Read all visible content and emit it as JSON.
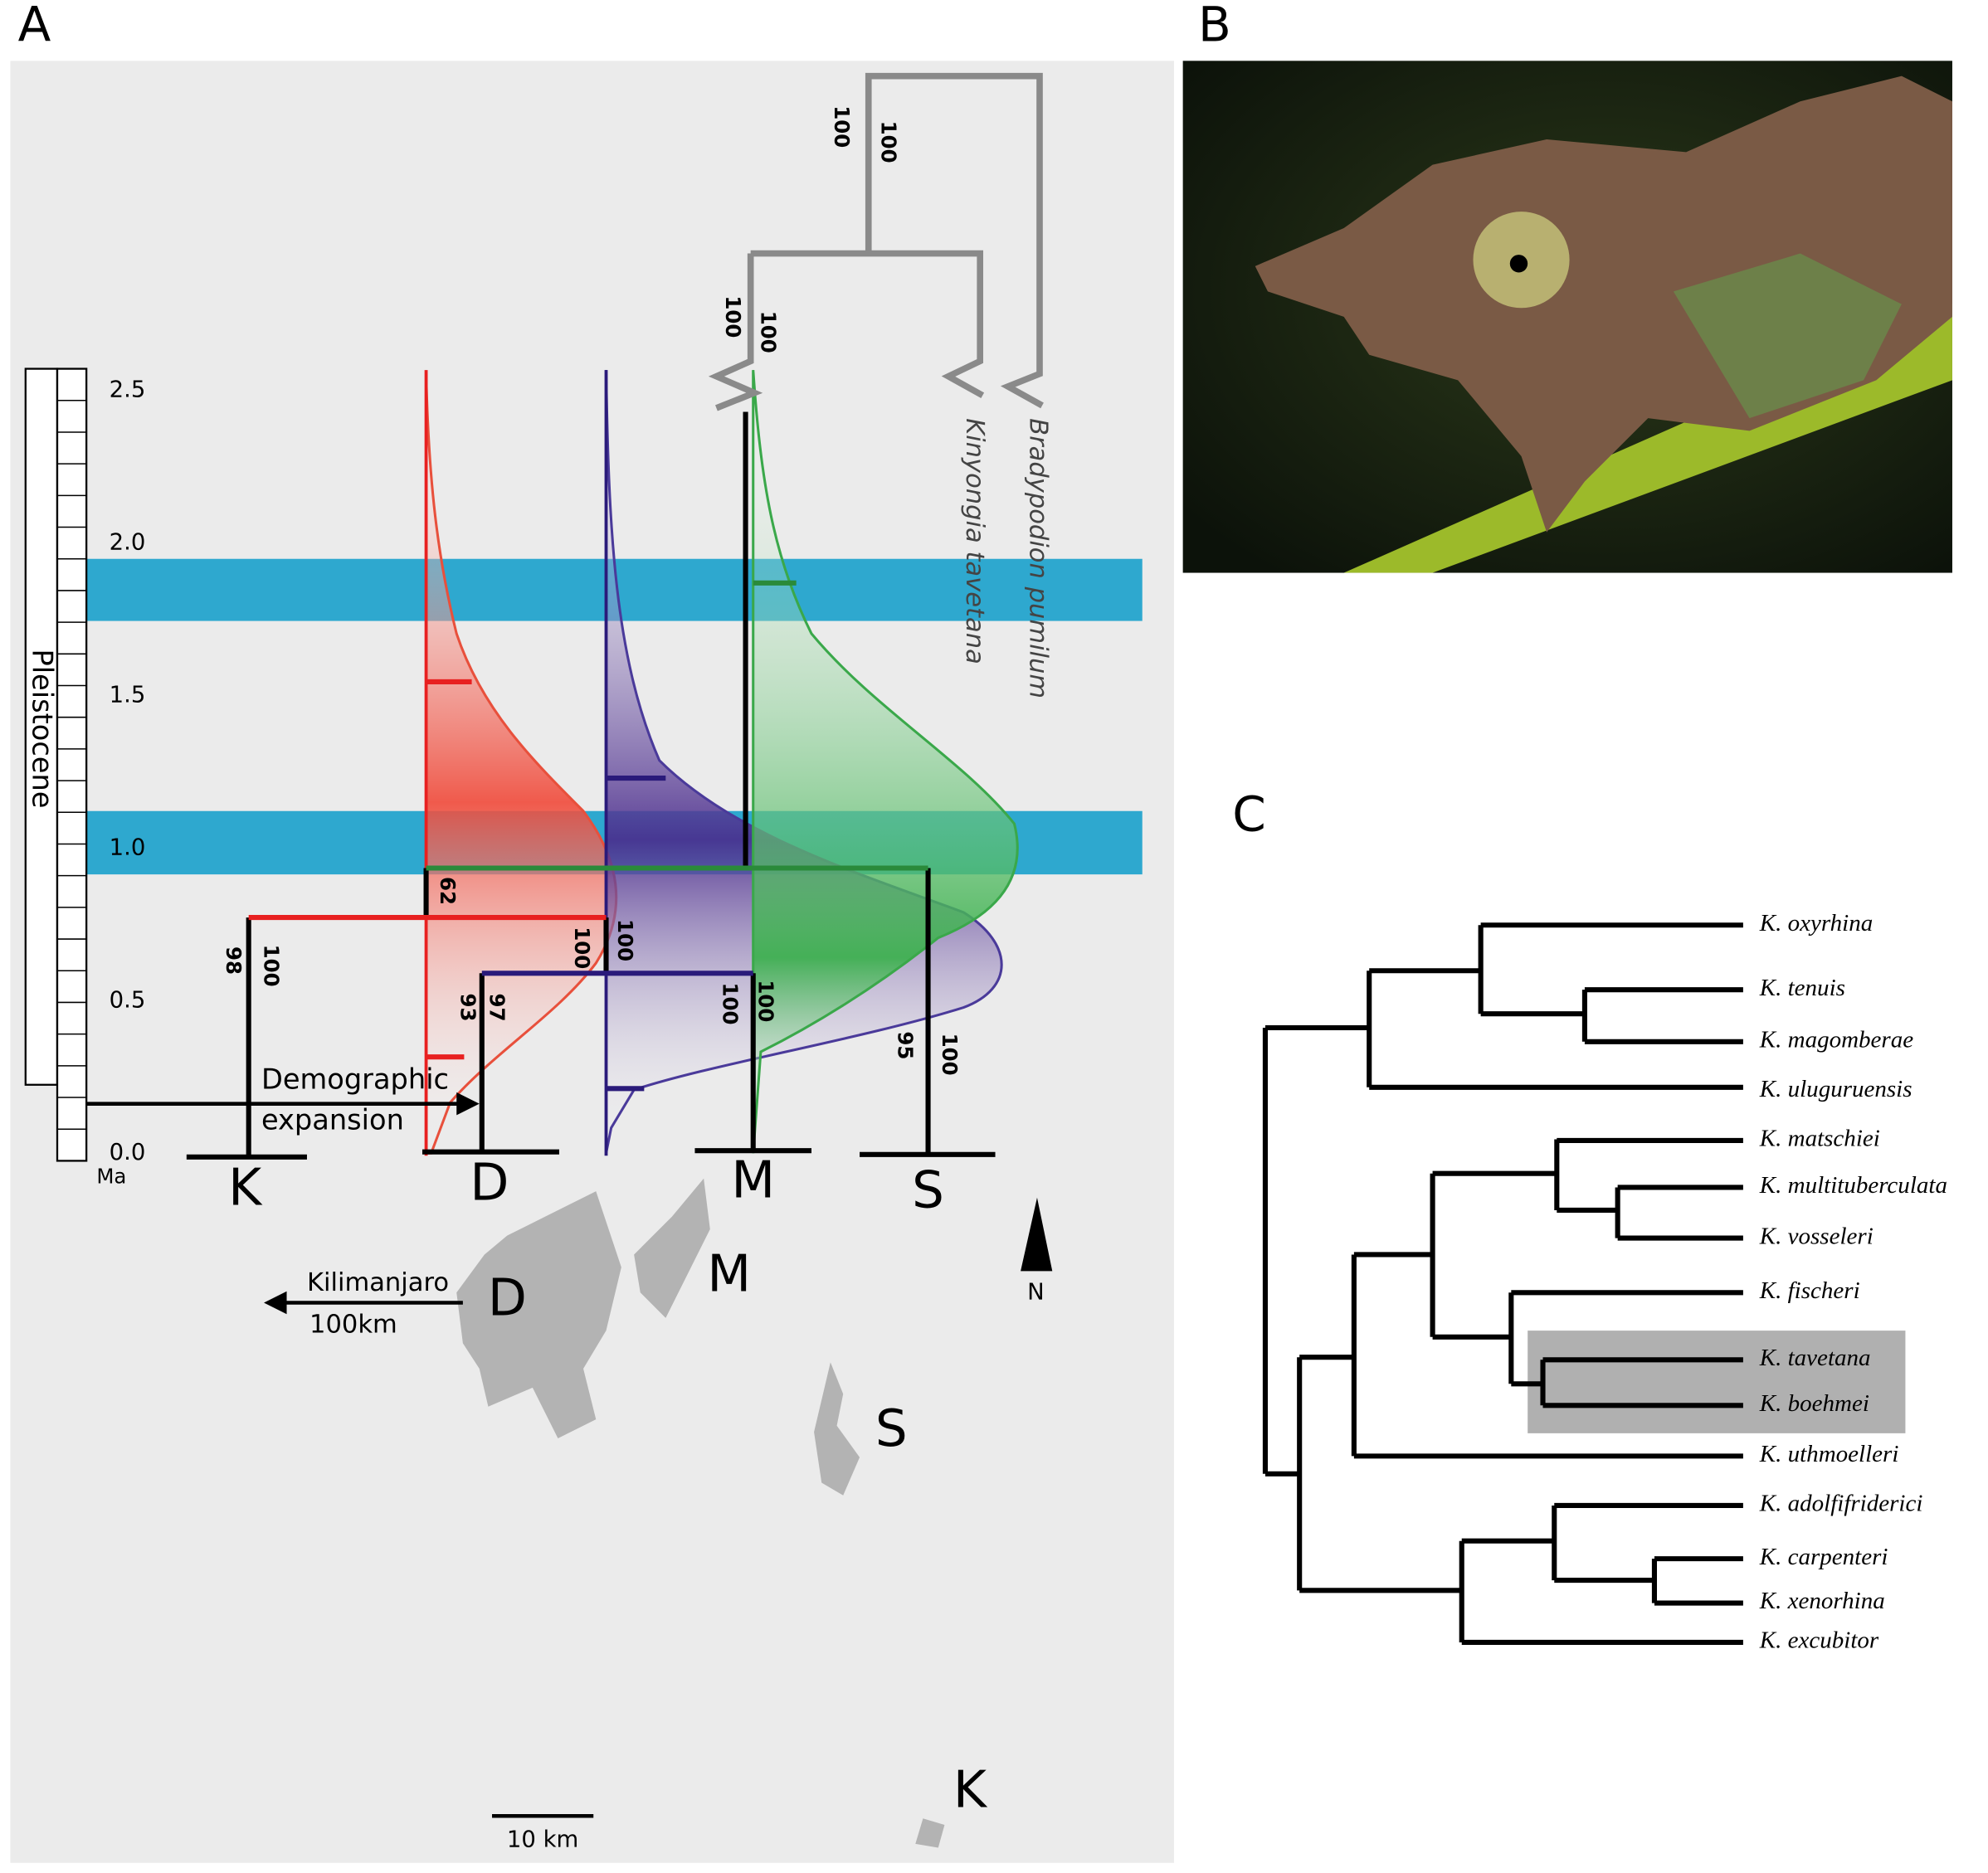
{
  "panel_a": {
    "label": "A",
    "epoch": "Pleistocene",
    "time_unit": "Ma",
    "time_ticks": [
      2.5,
      {
        "value": 2,
        "label": "2.0"
      },
      1.5,
      {
        "value": 1,
        "label": "1.0"
      },
      0.5,
      {
        "value": 0,
        "label": "0.0"
      }
    ],
    "support": [
      100,
      100,
      100,
      100,
      62,
      98,
      100,
      100,
      100,
      93,
      97,
      100,
      100,
      95,
      100
    ],
    "populations": [
      "K",
      "D",
      "M",
      "S"
    ],
    "outgroups": [
      "Kinyongia tavetana",
      "Bradypodion pumilum"
    ],
    "annotation": [
      "Demographic",
      "expansion"
    ],
    "map": {
      "labels": [
        "D",
        "M",
        "S",
        "K"
      ],
      "north": "N",
      "arrow": [
        "Kilimanjaro",
        "100km"
      ],
      "scale_bar": "10 km"
    }
  },
  "panel_b": {
    "label": "B"
  },
  "panel_c": {
    "label": "C",
    "taxa": [
      "K. oxyrhina",
      "K. tenuis",
      "K. magomberae",
      "K. uluguruensis",
      "K. matschiei",
      "K. multituberculata",
      "K. vosseleri",
      "K. fischeri",
      "K. tavetana",
      "K. boehmei",
      "K. uthmoelleri",
      "K. adolfifriderici",
      "K. carpenteri",
      "K. xenorhina",
      "K. excubitor"
    ]
  }
}
